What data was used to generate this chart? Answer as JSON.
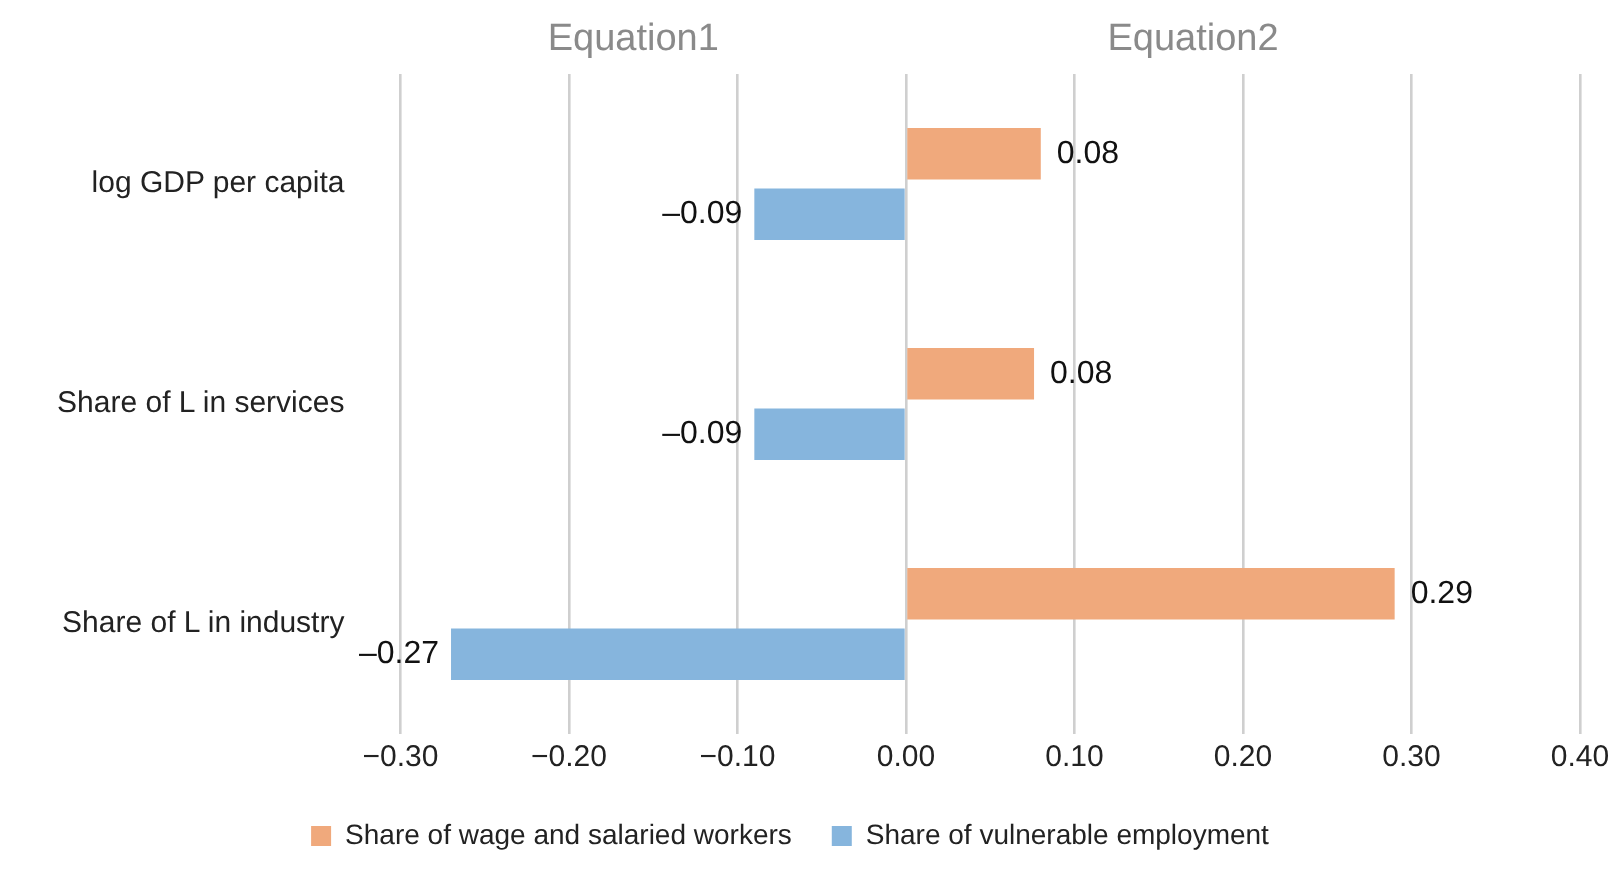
{
  "chart_data": {
    "type": "bar",
    "orientation": "horizontal",
    "categories": [
      "log GDP per capita",
      "Share of L in services",
      "Share of L in industry"
    ],
    "series": [
      {
        "name": "Share of wage and salaried workers",
        "color": "#f0a97c",
        "values": [
          0.08,
          0.076,
          0.29
        ],
        "value_labels": [
          "0.08",
          "0.08",
          "0.29"
        ]
      },
      {
        "name": "Share of vulnerable employment",
        "color": "#86b5dd",
        "values": [
          -0.09,
          -0.09,
          -0.27
        ],
        "value_labels": [
          "–0.09",
          "–0.09",
          "–0.27"
        ]
      }
    ],
    "xlim": [
      -0.3,
      0.4
    ],
    "xticks": [
      {
        "value": -0.3,
        "label": "−0.30"
      },
      {
        "value": -0.2,
        "label": "−0.20"
      },
      {
        "value": -0.1,
        "label": "−0.10"
      },
      {
        "value": 0,
        "label": "0.00"
      },
      {
        "value": 0.1,
        "label": "0.10"
      },
      {
        "value": 0.2,
        "label": "0.20"
      },
      {
        "value": 0.3,
        "label": "0.30"
      },
      {
        "value": 0.4,
        "label": "0.40"
      }
    ],
    "annotations": [
      "Equation1",
      "Equation2"
    ],
    "grid": "x",
    "legend": "bottom"
  }
}
